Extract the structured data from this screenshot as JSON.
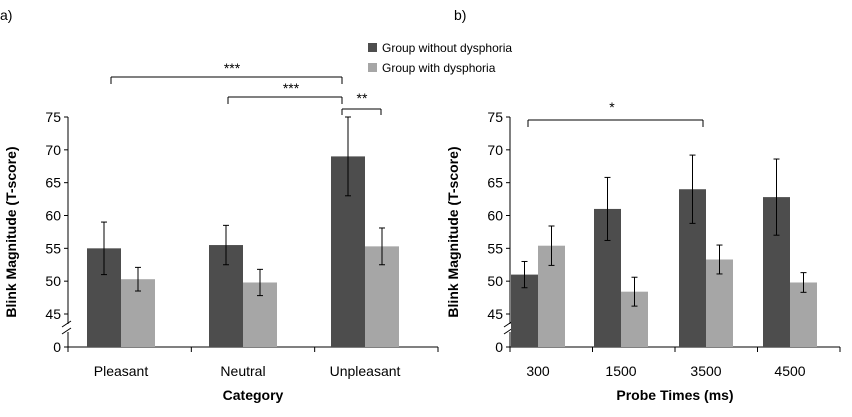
{
  "colors": {
    "dark": "#4d4d4d",
    "light": "#a6a6a6"
  },
  "legend": {
    "placement": "top-center",
    "items": [
      {
        "label": "Group without dysphoria",
        "color": "#4d4d4d"
      },
      {
        "label": "Group with dysphoria",
        "color": "#a6a6a6"
      }
    ]
  },
  "chart_data": [
    {
      "panel_label": "a)",
      "type": "bar",
      "xlabel": "Category",
      "ylabel": "Blink Magnitude (T-score)",
      "categories": [
        "Pleasant",
        "Neutral",
        "Unpleasant"
      ],
      "series": [
        {
          "name": "Group without dysphoria",
          "values": [
            55.0,
            55.5,
            69.0
          ],
          "errors": [
            4.0,
            3.0,
            6.0
          ]
        },
        {
          "name": "Group with dysphoria",
          "values": [
            50.3,
            49.8,
            55.3
          ],
          "errors": [
            1.8,
            2.0,
            2.8
          ]
        }
      ],
      "yticks": [
        "0",
        "45",
        "50",
        "55",
        "60",
        "65",
        "70",
        "75"
      ],
      "ylim": [
        42,
        75
      ],
      "axis_break": true,
      "grid": false,
      "significance": [
        {
          "label": "***",
          "from": 0,
          "to": 2
        },
        {
          "label": "***",
          "from": 1,
          "to": 2
        },
        {
          "label": "**",
          "from": 2,
          "to": 2.5
        }
      ]
    },
    {
      "panel_label": "b)",
      "type": "bar",
      "xlabel": "Probe Times (ms)",
      "ylabel": "Blink Magnitude (T-score)",
      "categories": [
        "300",
        "1500",
        "3500",
        "4500"
      ],
      "series": [
        {
          "name": "Group without dysphoria",
          "values": [
            51.0,
            61.0,
            64.0,
            62.8
          ],
          "errors": [
            2.0,
            4.8,
            5.2,
            5.8
          ]
        },
        {
          "name": "Group with dysphoria",
          "values": [
            55.4,
            48.4,
            53.3,
            49.8
          ],
          "errors": [
            3.0,
            2.2,
            2.2,
            1.5
          ]
        }
      ],
      "yticks": [
        "0",
        "45",
        "50",
        "55",
        "60",
        "65",
        "70",
        "75"
      ],
      "ylim": [
        42,
        75
      ],
      "axis_break": true,
      "grid": false,
      "significance": [
        {
          "label": "*",
          "from": 0,
          "to": 2
        }
      ]
    }
  ]
}
